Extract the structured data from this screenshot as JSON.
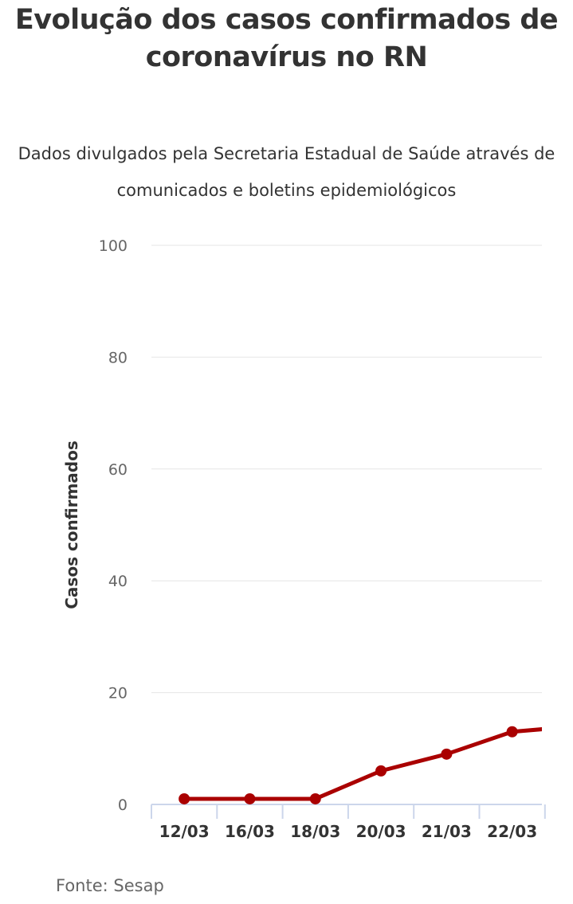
{
  "chart_data": {
    "type": "line",
    "title": "Evolução dos casos confirmados de coronavírus no RN",
    "subtitle": "Dados divulgados pela Secretaria Estadual de Saúde através de comunicados e boletins epidemiológicos",
    "xlabel": "",
    "ylabel": "Casos confirmados",
    "categories": [
      "12/03",
      "16/03",
      "18/03",
      "20/03",
      "21/03",
      "22/03",
      ""
    ],
    "values": [
      1,
      1,
      1,
      6,
      9,
      13,
      14
    ],
    "yticks": [
      0,
      20,
      40,
      60,
      80,
      100
    ],
    "ylim": [
      0,
      100
    ],
    "grid": true,
    "color": "#aa0000",
    "source": "Fonte: Sesap"
  }
}
